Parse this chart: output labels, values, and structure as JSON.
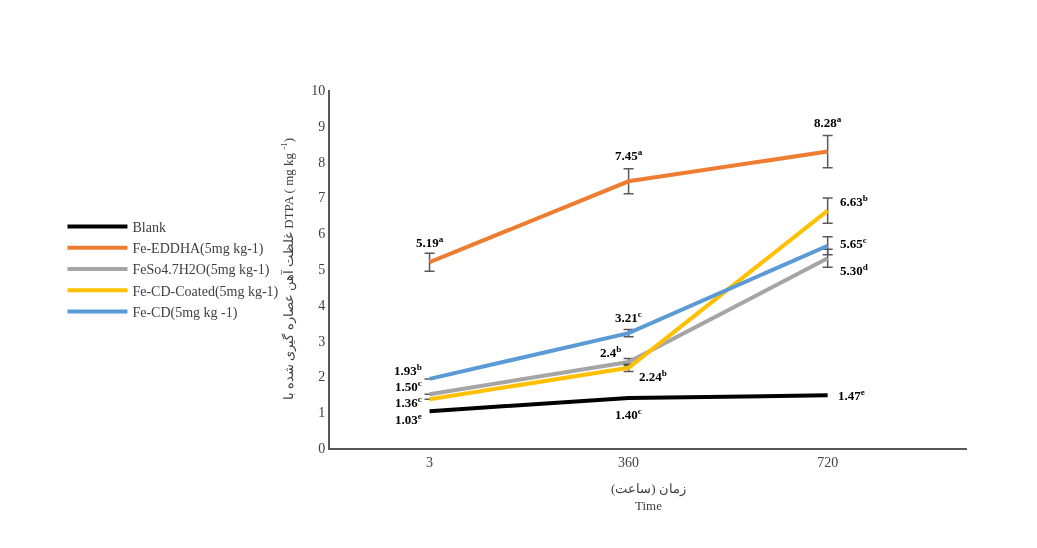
{
  "chart_data": {
    "type": "line",
    "xlabel": "زمان (ساعت)\nTime",
    "ylabel": "غلظت آهن عصاره گیری شده با DTPA ( mg kg $^{-1}$)",
    "categories": [
      "3",
      "360",
      "720"
    ],
    "series": [
      {
        "name": "Blank",
        "color": "#000000",
        "values": [
          1.03,
          1.4,
          1.47
        ],
        "value_labels": [
          "1.03$^{e}$",
          "1.40$^{c}$",
          "1.47$^{e}$"
        ]
      },
      {
        "name": "Fe-EDDHA(5mg kg-1)",
        "color": "#ed7d31",
        "values": [
          5.19,
          7.45,
          8.28
        ],
        "errors": [
          0.25,
          0.35,
          0.45
        ],
        "value_labels": [
          "5.19$^{a}$",
          "7.45$^{a}$",
          "8.28$^{a}$"
        ]
      },
      {
        "name": "FeSo4.7H2O(5mg kg-1)",
        "color": "#a5a5a5",
        "values": [
          1.5,
          2.4,
          5.3
        ],
        "errors": [
          null,
          0.1,
          0.25
        ],
        "value_labels": [
          "1.50$^{c}$",
          "2.4$^{b}$",
          "5.30$^{d}$"
        ]
      },
      {
        "name": "Fe-CD-Coated(5mg kg-1)",
        "color": "#ffc000",
        "values": [
          1.36,
          2.24,
          6.63
        ],
        "errors": [
          null,
          0.1,
          0.35
        ],
        "value_labels": [
          "1.36$^{c}$",
          "2.24$^{b}$",
          "6.63$^{b}$"
        ]
      },
      {
        "name": "Fe-CD(5mg kg -1)",
        "color": "#5b9bd5",
        "values": [
          1.93,
          3.21,
          5.65
        ],
        "errors": [
          null,
          0.1,
          0.25
        ],
        "value_labels": [
          "1.93$^{b}$",
          "3.21$^{c}$",
          "5.65$^{c}$"
        ]
      }
    ],
    "ylim": [
      0,
      10
    ],
    "yticks": [
      0,
      1,
      2,
      3,
      4,
      5,
      6,
      7,
      8,
      9,
      10
    ],
    "legend": "left",
    "marker": "none",
    "line_style": "solid"
  }
}
